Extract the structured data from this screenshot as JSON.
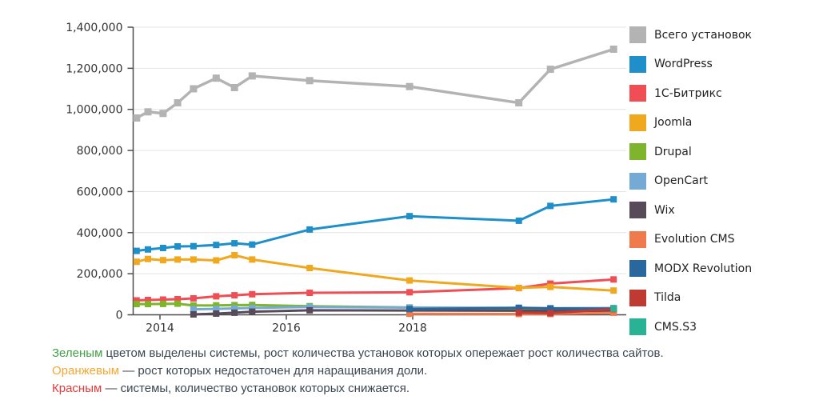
{
  "chart_data": {
    "type": "line",
    "x": [
      2013.63,
      2013.81,
      2014.05,
      2014.28,
      2014.53,
      2014.89,
      2015.18,
      2015.46,
      2016.37,
      2017.95,
      2019.68,
      2020.18,
      2021.18
    ],
    "xlim": [
      2013.57,
      2021.38
    ],
    "ylim": [
      0,
      1400000
    ],
    "grid": "horizontal-only",
    "legend_position": "right",
    "ylabel": "",
    "xlabel": "",
    "title": "",
    "y_axis": {
      "ticks": [
        0,
        200000,
        400000,
        600000,
        800000,
        1000000,
        1200000,
        1400000
      ],
      "tick_labels": [
        "0",
        "200,000",
        "400,000",
        "600,000",
        "800,000",
        "1,000,000",
        "1,200,000",
        "1,400,000"
      ]
    },
    "x_axis": {
      "ticks": [
        2014,
        2016,
        2018
      ],
      "tick_labels": [
        "2014",
        "2016",
        "2018"
      ]
    },
    "series": [
      {
        "name": "Всего установок",
        "slug": "total-installs",
        "color": "#b3b3b3",
        "values": [
          958000,
          988000,
          980000,
          1032000,
          1100000,
          1152000,
          1106000,
          1163000,
          1140000,
          1111000,
          1032000,
          1195000,
          1293000
        ]
      },
      {
        "name": "WordPress",
        "slug": "wordpress",
        "color": "#1e8fc9",
        "values": [
          311000,
          318000,
          325000,
          333000,
          334000,
          340000,
          348000,
          342000,
          415000,
          480000,
          458000,
          530000,
          562000
        ]
      },
      {
        "name": "1С-Битрикс",
        "slug": "1c-bitrix",
        "color": "#ef4e55",
        "values": [
          70000,
          72000,
          74000,
          76000,
          80000,
          90000,
          95000,
          100000,
          107000,
          110000,
          130000,
          152000,
          172000
        ]
      },
      {
        "name": "Joomla",
        "slug": "joomla",
        "color": "#f0a81f",
        "values": [
          258000,
          272000,
          266000,
          269000,
          269000,
          265000,
          290000,
          269000,
          228000,
          167000,
          131000,
          136000,
          118000
        ]
      },
      {
        "name": "Drupal",
        "slug": "drupal",
        "color": "#7eb52d",
        "values": [
          52000,
          52000,
          53000,
          54000,
          45000,
          46000,
          47000,
          48000,
          42000,
          36000,
          30000,
          28000,
          26000
        ]
      },
      {
        "name": "OpenCart",
        "slug": "opencart",
        "color": "#74aad4",
        "values": [
          null,
          null,
          null,
          null,
          27000,
          29000,
          31000,
          33000,
          38000,
          35000,
          34000,
          32000,
          33000
        ]
      },
      {
        "name": "Wix",
        "slug": "wix",
        "color": "#574a59",
        "values": [
          null,
          null,
          null,
          null,
          2000,
          6000,
          10000,
          15000,
          22000,
          21000,
          20000,
          19000,
          19000
        ]
      },
      {
        "name": "Evolution CMS",
        "slug": "evolution-cms",
        "color": "#ef7a4c",
        "values": [
          null,
          null,
          null,
          null,
          null,
          null,
          null,
          null,
          null,
          5000,
          4000,
          4000,
          10000
        ]
      },
      {
        "name": "MODX Revolution",
        "slug": "modx-revolution",
        "color": "#29679f",
        "values": [
          null,
          null,
          null,
          null,
          null,
          null,
          null,
          null,
          null,
          28000,
          34000,
          31000,
          30000
        ]
      },
      {
        "name": "Tilda",
        "slug": "tilda",
        "color": "#bf3a32",
        "values": [
          null,
          null,
          null,
          null,
          null,
          null,
          null,
          null,
          null,
          null,
          11000,
          8000,
          28000
        ]
      },
      {
        "name": "CMS.S3",
        "slug": "cms-s3",
        "color": "#29b394",
        "values": [
          null,
          null,
          null,
          null,
          null,
          null,
          null,
          null,
          null,
          null,
          null,
          null,
          30000
        ]
      }
    ]
  },
  "notes": [
    {
      "term": "Зеленым",
      "color": "#43a047",
      "rest": " цветом выделены системы, рост количества установок которых опережает рост количества сайтов."
    },
    {
      "term": "Оранжевым",
      "color": "#f5a733",
      "rest": " — рост которых недостаточен для наращивания доли."
    },
    {
      "term": "Красным",
      "color": "#e23b3c",
      "rest": " — системы, количество установок которых снижается."
    }
  ]
}
